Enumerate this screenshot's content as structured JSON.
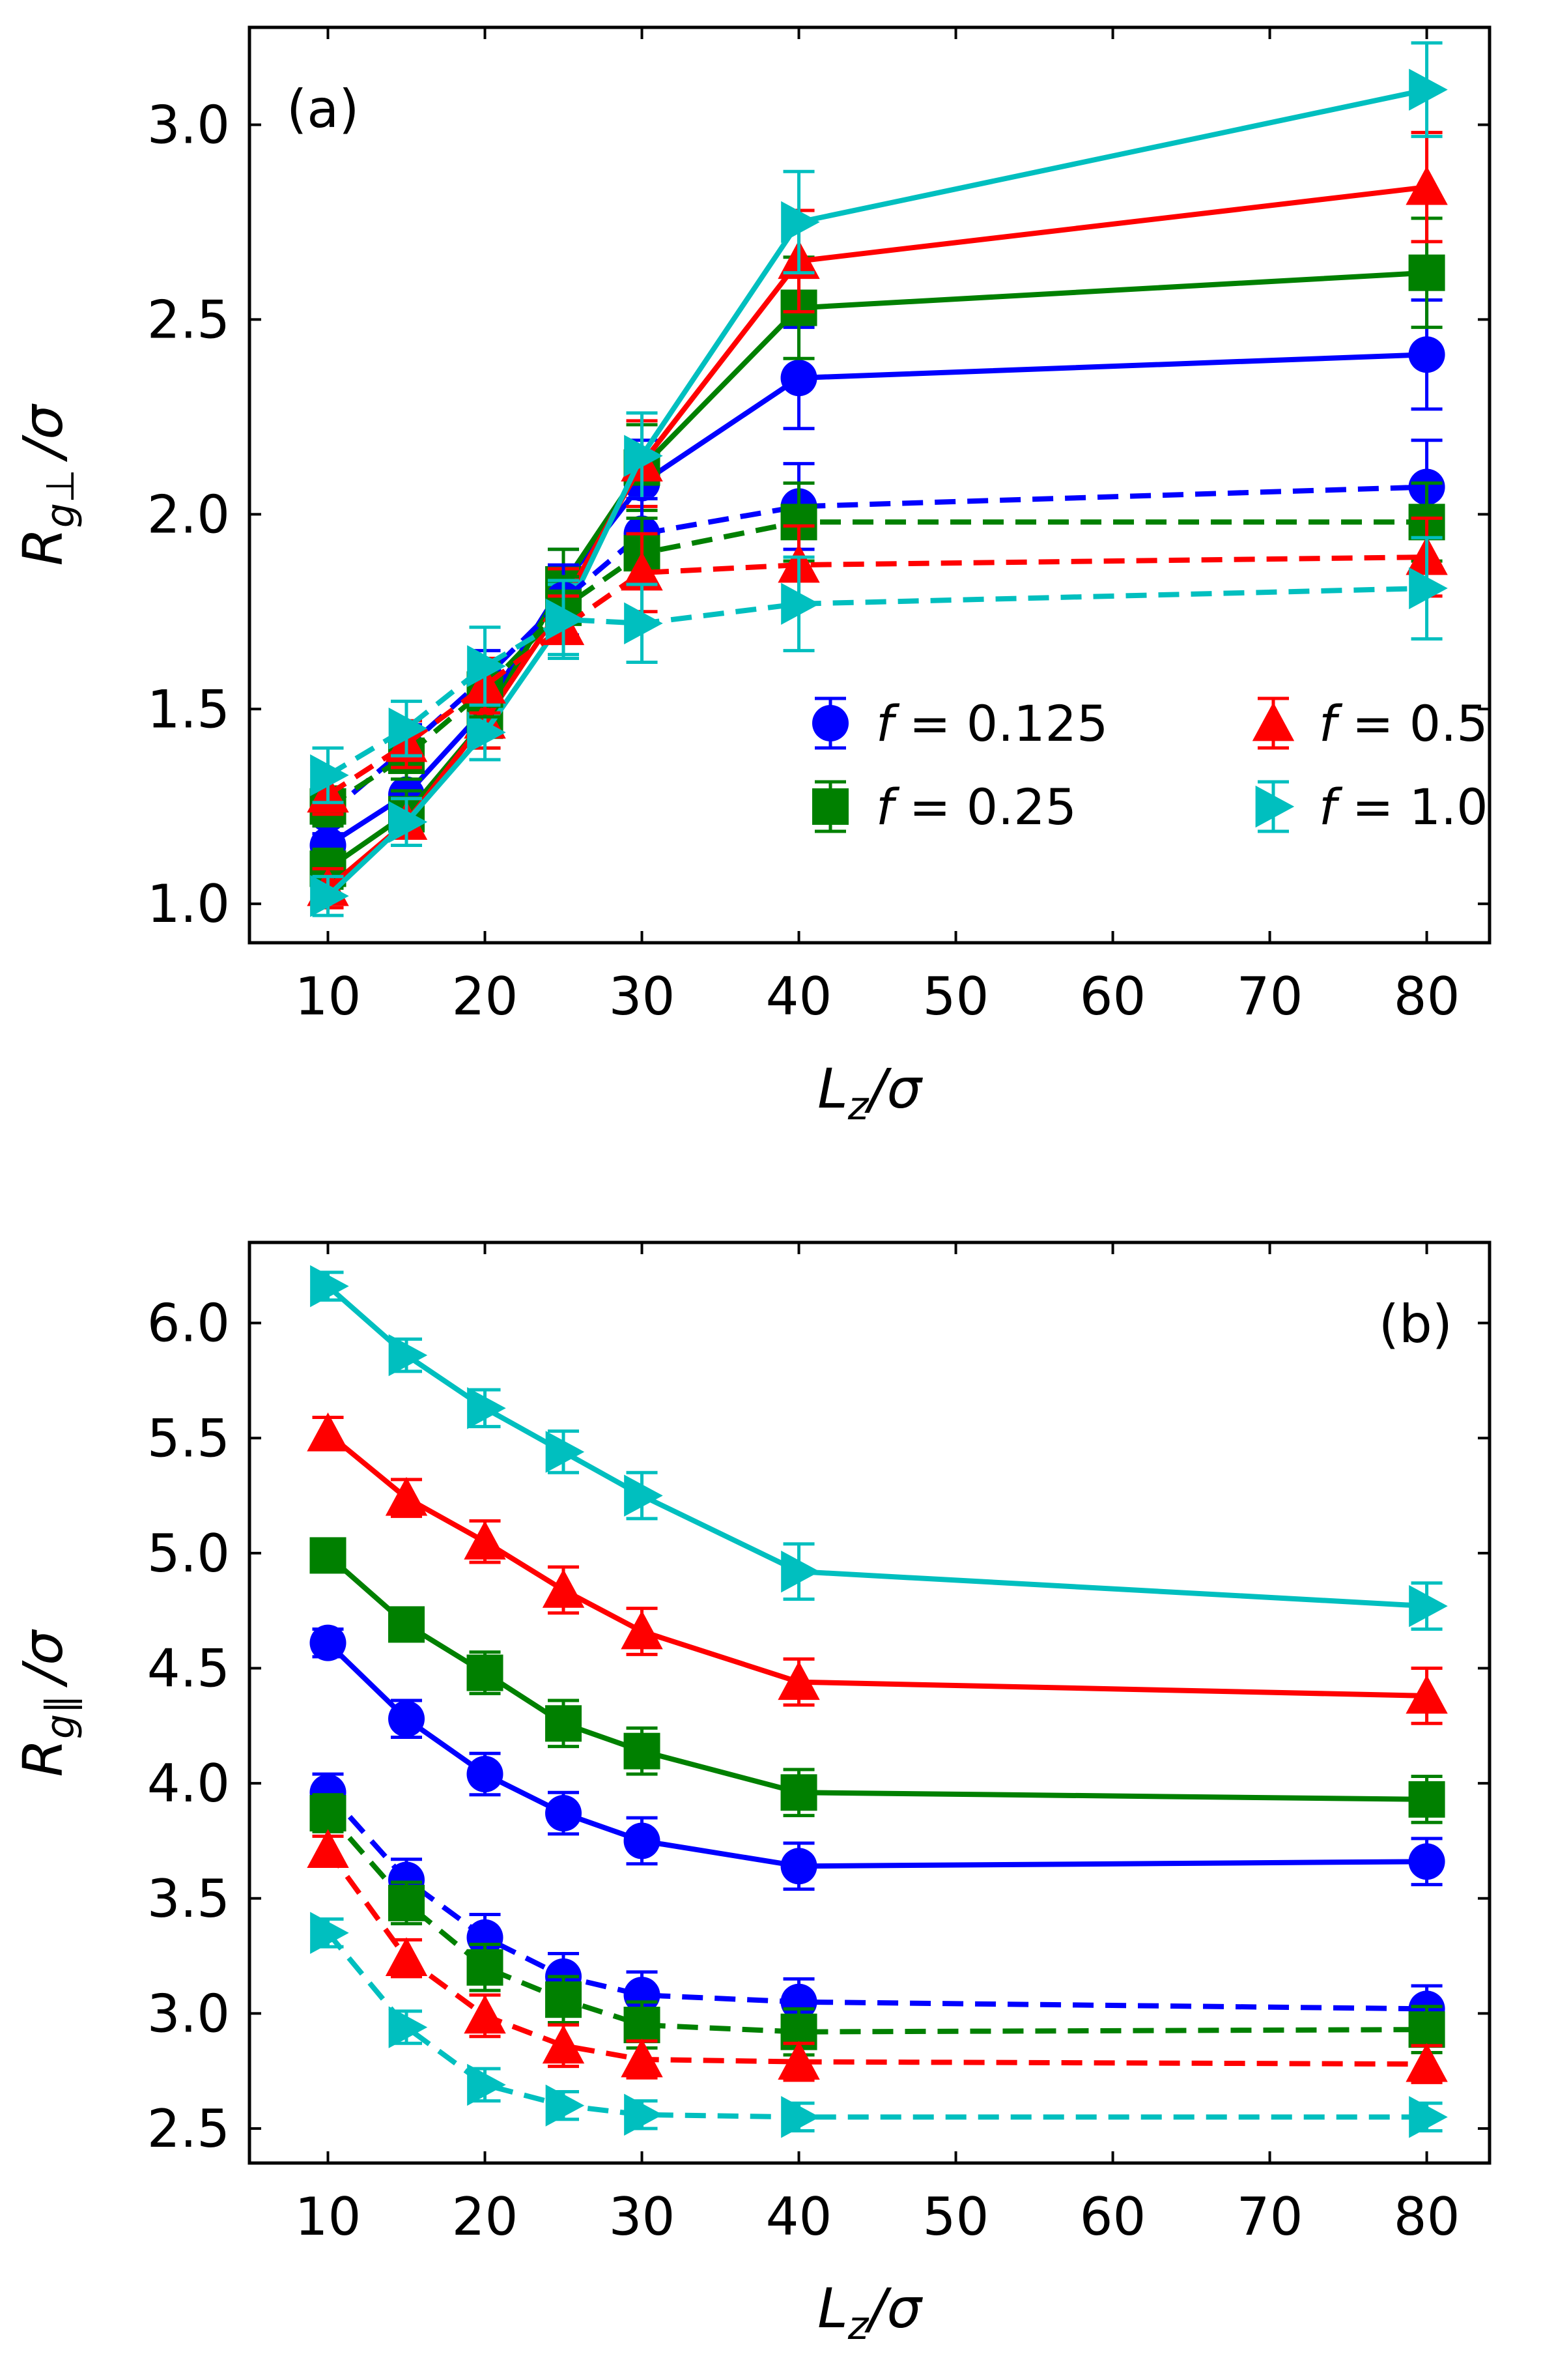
{
  "chart_data": [
    {
      "type": "line",
      "panel_label": "(a)",
      "xlabel": "L_z/σ",
      "ylabel": "R_g⊥/σ",
      "xlim": [
        5,
        84
      ],
      "ylim": [
        0.9,
        3.25
      ],
      "x_ticks": [
        10,
        20,
        30,
        40,
        50,
        60,
        70,
        80
      ],
      "y_ticks": [
        1.0,
        1.5,
        2.0,
        2.5,
        3.0
      ],
      "x_tick_labels": [
        "10",
        "20",
        "30",
        "40",
        "50",
        "60",
        "70",
        "80"
      ],
      "y_tick_labels": [
        "1.0",
        "1.5",
        "2.0",
        "2.5",
        "3.0"
      ],
      "grid": false,
      "legend": {
        "placement": "lower-right",
        "entries": [
          {
            "label": "f = 0.125",
            "marker": "circle",
            "color": "#0000ff"
          },
          {
            "label": "f = 0.5",
            "marker": "triangle-up",
            "color": "#ff0000"
          },
          {
            "label": "f = 0.25",
            "marker": "square",
            "color": "#008000"
          },
          {
            "label": "f = 1.0",
            "marker": "triangle-right",
            "color": "#00bfbf"
          }
        ]
      },
      "x": [
        10,
        15,
        20,
        25,
        30,
        40,
        80
      ],
      "series": [
        {
          "color": "#0000ff",
          "marker": "circle",
          "dash": "solid",
          "y": [
            1.15,
            1.28,
            1.5,
            1.82,
            2.08,
            2.35,
            2.41
          ],
          "err": [
            0.05,
            0.06,
            0.07,
            0.09,
            0.11,
            0.13,
            0.14
          ]
        },
        {
          "color": "#008000",
          "marker": "square",
          "dash": "solid",
          "y": [
            1.09,
            1.23,
            1.47,
            1.82,
            2.12,
            2.53,
            2.62
          ],
          "err": [
            0.05,
            0.06,
            0.07,
            0.09,
            0.11,
            0.13,
            0.14
          ]
        },
        {
          "color": "#ff0000",
          "marker": "triangle-up",
          "dash": "solid",
          "y": [
            1.04,
            1.21,
            1.47,
            1.77,
            2.13,
            2.65,
            2.84
          ],
          "err": [
            0.05,
            0.06,
            0.07,
            0.09,
            0.11,
            0.13,
            0.14
          ]
        },
        {
          "color": "#00bfbf",
          "marker": "triangle-right",
          "dash": "solid",
          "y": [
            1.02,
            1.21,
            1.44,
            1.73,
            2.15,
            2.75,
            3.09
          ],
          "err": [
            0.05,
            0.06,
            0.07,
            0.09,
            0.11,
            0.13,
            0.12
          ]
        },
        {
          "color": "#0000ff",
          "marker": "circle",
          "dash": "dashed",
          "y": [
            1.23,
            1.4,
            1.58,
            1.78,
            1.95,
            2.02,
            2.07
          ],
          "err": [
            0.05,
            0.06,
            0.07,
            0.09,
            0.09,
            0.11,
            0.12
          ]
        },
        {
          "color": "#008000",
          "marker": "square",
          "dash": "dashed",
          "y": [
            1.25,
            1.38,
            1.55,
            1.76,
            1.9,
            1.98,
            1.98
          ],
          "err": [
            0.05,
            0.06,
            0.07,
            0.08,
            0.09,
            0.1,
            0.1
          ]
        },
        {
          "color": "#ff0000",
          "marker": "triangle-up",
          "dash": "dashed",
          "y": [
            1.28,
            1.41,
            1.56,
            1.71,
            1.85,
            1.87,
            1.89
          ],
          "err": [
            0.05,
            0.06,
            0.07,
            0.08,
            0.1,
            0.1,
            0.1
          ]
        },
        {
          "color": "#00bfbf",
          "marker": "triangle-right",
          "dash": "dashed",
          "y": [
            1.33,
            1.45,
            1.61,
            1.73,
            1.72,
            1.77,
            1.81
          ],
          "err": [
            0.07,
            0.07,
            0.1,
            0.1,
            0.1,
            0.12,
            0.13
          ]
        }
      ]
    },
    {
      "type": "line",
      "panel_label": "(b)",
      "xlabel": "L_z/σ",
      "ylabel": "R_g∥/σ",
      "xlim": [
        5,
        84
      ],
      "ylim": [
        2.35,
        6.35
      ],
      "x_ticks": [
        10,
        20,
        30,
        40,
        50,
        60,
        70,
        80
      ],
      "y_ticks": [
        2.5,
        3.0,
        3.5,
        4.0,
        4.5,
        5.0,
        5.5,
        6.0
      ],
      "x_tick_labels": [
        "10",
        "20",
        "30",
        "40",
        "50",
        "60",
        "70",
        "80"
      ],
      "y_tick_labels": [
        "2.5",
        "3.0",
        "3.5",
        "4.0",
        "4.5",
        "5.0",
        "5.5",
        "6.0"
      ],
      "grid": false,
      "x": [
        10,
        15,
        20,
        25,
        30,
        40,
        80
      ],
      "series": [
        {
          "color": "#00bfbf",
          "marker": "triangle-right",
          "dash": "solid",
          "y": [
            6.16,
            5.86,
            5.63,
            5.44,
            5.25,
            4.92,
            4.77
          ],
          "err": [
            0.06,
            0.07,
            0.08,
            0.09,
            0.1,
            0.12,
            0.1
          ]
        },
        {
          "color": "#ff0000",
          "marker": "triangle-up",
          "dash": "solid",
          "y": [
            5.52,
            5.24,
            5.05,
            4.84,
            4.66,
            4.44,
            4.38
          ],
          "err": [
            0.07,
            0.08,
            0.09,
            0.1,
            0.1,
            0.1,
            0.12
          ]
        },
        {
          "color": "#008000",
          "marker": "square",
          "dash": "solid",
          "y": [
            4.99,
            4.69,
            4.48,
            4.26,
            4.14,
            3.96,
            3.93
          ],
          "err": [
            0.06,
            0.07,
            0.09,
            0.1,
            0.1,
            0.1,
            0.1
          ]
        },
        {
          "color": "#0000ff",
          "marker": "circle",
          "dash": "solid",
          "y": [
            4.61,
            4.28,
            4.04,
            3.87,
            3.75,
            3.64,
            3.66
          ],
          "err": [
            0.06,
            0.08,
            0.09,
            0.09,
            0.1,
            0.1,
            0.1
          ]
        },
        {
          "color": "#0000ff",
          "marker": "circle",
          "dash": "dashed",
          "y": [
            3.96,
            3.58,
            3.33,
            3.16,
            3.08,
            3.05,
            3.02
          ],
          "err": [
            0.08,
            0.09,
            0.1,
            0.1,
            0.1,
            0.1,
            0.1
          ]
        },
        {
          "color": "#008000",
          "marker": "square",
          "dash": "dashed",
          "y": [
            3.87,
            3.48,
            3.2,
            3.06,
            2.95,
            2.92,
            2.93
          ],
          "err": [
            0.08,
            0.09,
            0.1,
            0.1,
            0.1,
            0.1,
            0.1
          ]
        },
        {
          "color": "#ff0000",
          "marker": "triangle-up",
          "dash": "dashed",
          "y": [
            3.71,
            3.24,
            2.99,
            2.86,
            2.8,
            2.79,
            2.78
          ],
          "err": [
            0.06,
            0.08,
            0.09,
            0.09,
            0.08,
            0.08,
            0.08
          ]
        },
        {
          "color": "#00bfbf",
          "marker": "triangle-right",
          "dash": "dashed",
          "y": [
            3.35,
            2.94,
            2.69,
            2.6,
            2.56,
            2.55,
            2.55
          ],
          "err": [
            0.06,
            0.07,
            0.07,
            0.06,
            0.06,
            0.06,
            0.06
          ]
        }
      ]
    }
  ]
}
